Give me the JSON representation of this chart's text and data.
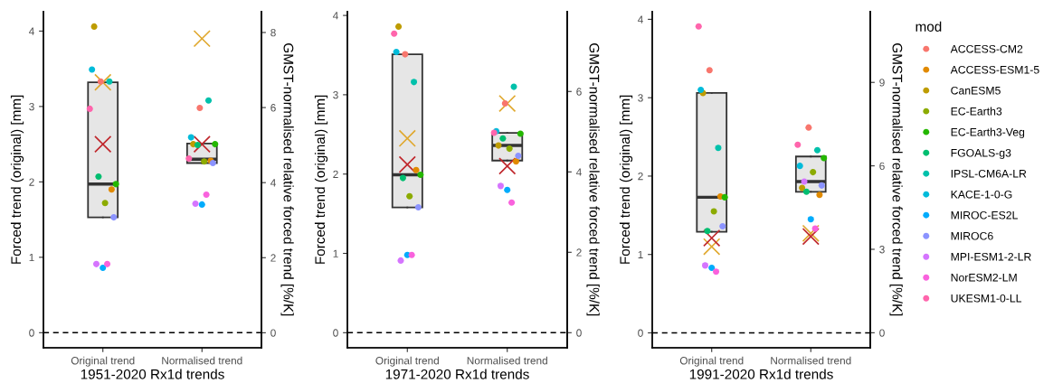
{
  "chart_data": [
    {
      "type": "box",
      "xlabel": "1951-2020 Rx1d trends",
      "ylabel": "Forced trend (original) [mm]",
      "y2label": "GMST-normalised relative forced trend [%/K]",
      "categories": [
        "Original trend",
        "Normalised trend"
      ],
      "ylim": [
        -0.2,
        4.26
      ],
      "yticks": [
        0,
        1,
        2,
        3,
        4
      ],
      "y2lim": [
        -0.4,
        8.56
      ],
      "y2ticks": [
        0,
        2,
        4,
        6,
        8
      ],
      "grid": false,
      "ref_lines": [
        {
          "axis": "y",
          "value": 0,
          "color": "#000000",
          "line_style": "dashed"
        }
      ],
      "series": [
        {
          "color": "#e6e6e6",
          "boxes": [
            {
              "low": 1.53,
              "q1": 1.53,
              "median": 1.97,
              "q3": 3.32,
              "high": 3.32
            },
            {
              "low": 2.25,
              "q1": 2.25,
              "median": 2.3,
              "q3": 2.51,
              "high": 2.51
            }
          ]
        },
        {
          "type": "scatter",
          "color": "#f8766d",
          "marker": "circle",
          "values": [
            3.33,
            2.98
          ]
        },
        {
          "type": "scatter",
          "color": "#e18a00",
          "marker": "circle",
          "values": [
            1.9,
            2.28
          ]
        },
        {
          "type": "scatter",
          "color": "#be9c00",
          "marker": "circle",
          "values": [
            4.06,
            2.5
          ]
        },
        {
          "type": "scatter",
          "color": "#8cab00",
          "marker": "circle",
          "values": [
            1.72,
            2.27
          ]
        },
        {
          "type": "scatter",
          "color": "#24b700",
          "marker": "circle",
          "values": [
            1.97,
            2.5
          ]
        },
        {
          "type": "scatter",
          "color": "#00be70",
          "marker": "circle",
          "values": [
            2.07,
            2.49
          ]
        },
        {
          "type": "scatter",
          "color": "#00c1ab",
          "marker": "circle",
          "values": [
            3.33,
            3.08
          ]
        },
        {
          "type": "scatter",
          "color": "#00bbda",
          "marker": "circle",
          "values": [
            3.49,
            2.59
          ]
        },
        {
          "type": "scatter",
          "color": "#00acfc",
          "marker": "circle",
          "values": [
            0.86,
            1.7
          ]
        },
        {
          "type": "scatter",
          "color": "#8b93ff",
          "marker": "circle",
          "values": [
            1.53,
            2.25
          ]
        },
        {
          "type": "scatter",
          "color": "#d575fe",
          "marker": "circle",
          "values": [
            0.91,
            1.71
          ]
        },
        {
          "type": "scatter",
          "color": "#f962dd",
          "marker": "circle",
          "values": [
            0.91,
            1.83
          ]
        },
        {
          "type": "scatter",
          "color": "#ff65ac",
          "marker": "circle",
          "values": [
            2.97,
            2.31
          ]
        },
        {
          "type": "scatter",
          "color": "#e0a82e",
          "marker": "cross",
          "values": [
            3.32,
            3.9
          ]
        },
        {
          "type": "scatter",
          "color": "#c0282d",
          "marker": "cross",
          "values": [
            2.5,
            2.5
          ]
        }
      ]
    },
    {
      "type": "box",
      "xlabel": "1971-2020 Rx1d trends",
      "ylabel": "Forced trend (original) [mm]",
      "y2label": "GMST-normalised relative forced trend [%/K]",
      "categories": [
        "Original trend",
        "Normalised trend"
      ],
      "ylim": [
        -0.19,
        4.05
      ],
      "yticks": [
        0,
        1,
        2,
        3,
        4
      ],
      "y2lim": [
        -0.375,
        7.99
      ],
      "y2ticks": [
        0,
        2,
        4,
        6
      ],
      "grid": false,
      "ref_lines": [
        {
          "axis": "y",
          "value": 0,
          "color": "#000000",
          "line_style": "dashed"
        }
      ],
      "series": [
        {
          "color": "#e6e6e6",
          "boxes": [
            {
              "low": 1.58,
              "q1": 1.58,
              "median": 1.99,
              "q3": 3.51,
              "high": 3.51
            },
            {
              "low": 2.17,
              "q1": 2.17,
              "median": 2.36,
              "q3": 2.52,
              "high": 2.52
            }
          ]
        },
        {
          "type": "scatter",
          "color": "#f8766d",
          "marker": "circle",
          "values": [
            3.51,
            2.89
          ]
        },
        {
          "type": "scatter",
          "color": "#e18a00",
          "marker": "circle",
          "values": [
            2.05,
            2.16
          ]
        },
        {
          "type": "scatter",
          "color": "#be9c00",
          "marker": "circle",
          "values": [
            3.86,
            2.36
          ]
        },
        {
          "type": "scatter",
          "color": "#8cab00",
          "marker": "circle",
          "values": [
            1.72,
            2.32
          ]
        },
        {
          "type": "scatter",
          "color": "#24b700",
          "marker": "circle",
          "values": [
            1.99,
            2.51
          ]
        },
        {
          "type": "scatter",
          "color": "#00be70",
          "marker": "circle",
          "values": [
            1.95,
            2.45
          ]
        },
        {
          "type": "scatter",
          "color": "#00c1ab",
          "marker": "circle",
          "values": [
            3.16,
            3.1
          ]
        },
        {
          "type": "scatter",
          "color": "#00bbda",
          "marker": "circle",
          "values": [
            3.54,
            2.54
          ]
        },
        {
          "type": "scatter",
          "color": "#00acfc",
          "marker": "circle",
          "values": [
            0.98,
            1.8
          ]
        },
        {
          "type": "scatter",
          "color": "#8b93ff",
          "marker": "circle",
          "values": [
            1.58,
            2.23
          ]
        },
        {
          "type": "scatter",
          "color": "#d575fe",
          "marker": "circle",
          "values": [
            0.91,
            1.85
          ]
        },
        {
          "type": "scatter",
          "color": "#f962dd",
          "marker": "circle",
          "values": [
            0.98,
            1.64
          ]
        },
        {
          "type": "scatter",
          "color": "#ff65ac",
          "marker": "circle",
          "values": [
            3.77,
            2.52
          ]
        },
        {
          "type": "scatter",
          "color": "#e0a82e",
          "marker": "cross",
          "values": [
            2.45,
            2.89
          ]
        },
        {
          "type": "scatter",
          "color": "#c0282d",
          "marker": "cross",
          "values": [
            2.12,
            2.1
          ]
        }
      ]
    },
    {
      "type": "box",
      "xlabel": "1991-2020 Rx1d trends",
      "ylabel": "Forced trend (original) [mm]",
      "y2label": "GMST-normalised relative forced trend [%/K]",
      "categories": [
        "Original trend",
        "Normalised trend"
      ],
      "ylim": [
        -0.19,
        4.1
      ],
      "yticks": [
        0,
        1,
        2,
        3,
        4
      ],
      "y2lim": [
        -0.54,
        11.55
      ],
      "y2ticks": [
        0,
        3,
        6,
        9
      ],
      "grid": false,
      "ref_lines": [
        {
          "axis": "y",
          "value": 0,
          "color": "#000000",
          "line_style": "dashed"
        }
      ],
      "legend": "right",
      "legend_title": "mod",
      "series": [
        {
          "color": "#e6e6e6",
          "boxes": [
            {
              "low": 1.29,
              "q1": 1.29,
              "median": 1.73,
              "q3": 3.06,
              "high": 3.06
            },
            {
              "low": 1.8,
              "q1": 1.8,
              "median": 1.93,
              "q3": 2.25,
              "high": 2.25
            }
          ]
        },
        {
          "type": "scatter",
          "name": "ACCESS-CM2",
          "color": "#f8766d",
          "marker": "circle",
          "values": [
            3.35,
            2.62
          ]
        },
        {
          "type": "scatter",
          "name": "ACCESS-ESM1-5",
          "color": "#e18a00",
          "marker": "circle",
          "values": [
            1.74,
            1.76
          ]
        },
        {
          "type": "scatter",
          "name": "CanESM5",
          "color": "#be9c00",
          "marker": "circle",
          "values": [
            3.06,
            1.85
          ]
        },
        {
          "type": "scatter",
          "name": "EC-Earth3",
          "color": "#8cab00",
          "marker": "circle",
          "values": [
            1.55,
            2.05
          ]
        },
        {
          "type": "scatter",
          "name": "EC-Earth3-Veg",
          "color": "#24b700",
          "marker": "circle",
          "values": [
            1.73,
            2.23
          ]
        },
        {
          "type": "scatter",
          "name": "FGOALS-g3",
          "color": "#00be70",
          "marker": "circle",
          "values": [
            1.3,
            1.8
          ]
        },
        {
          "type": "scatter",
          "name": "IPSL-CM6A-LR",
          "color": "#00c1ab",
          "marker": "circle",
          "values": [
            2.36,
            2.33
          ]
        },
        {
          "type": "scatter",
          "name": "KACE-1-0-G",
          "color": "#00bbda",
          "marker": "circle",
          "values": [
            3.1,
            2.13
          ]
        },
        {
          "type": "scatter",
          "name": "MIROC-ES2L",
          "color": "#00acfc",
          "marker": "circle",
          "values": [
            0.83,
            1.45
          ]
        },
        {
          "type": "scatter",
          "name": "MIROC6",
          "color": "#8b93ff",
          "marker": "circle",
          "values": [
            1.36,
            1.88
          ]
        },
        {
          "type": "scatter",
          "name": "MPI-ESM1-2-LR",
          "color": "#d575fe",
          "marker": "circle",
          "values": [
            0.86,
            1.93
          ]
        },
        {
          "type": "scatter",
          "name": "NorESM2-LM",
          "color": "#f962dd",
          "marker": "circle",
          "values": [
            0.78,
            1.33
          ]
        },
        {
          "type": "scatter",
          "name": "UKESM1-0-LL",
          "color": "#ff65ac",
          "marker": "circle",
          "values": [
            3.91,
            2.4
          ]
        },
        {
          "type": "scatter",
          "color": "#e0a82e",
          "marker": "cross",
          "values": [
            1.1,
            1.27
          ]
        },
        {
          "type": "scatter",
          "color": "#c0282d",
          "marker": "cross",
          "values": [
            1.21,
            1.23
          ]
        }
      ]
    }
  ]
}
